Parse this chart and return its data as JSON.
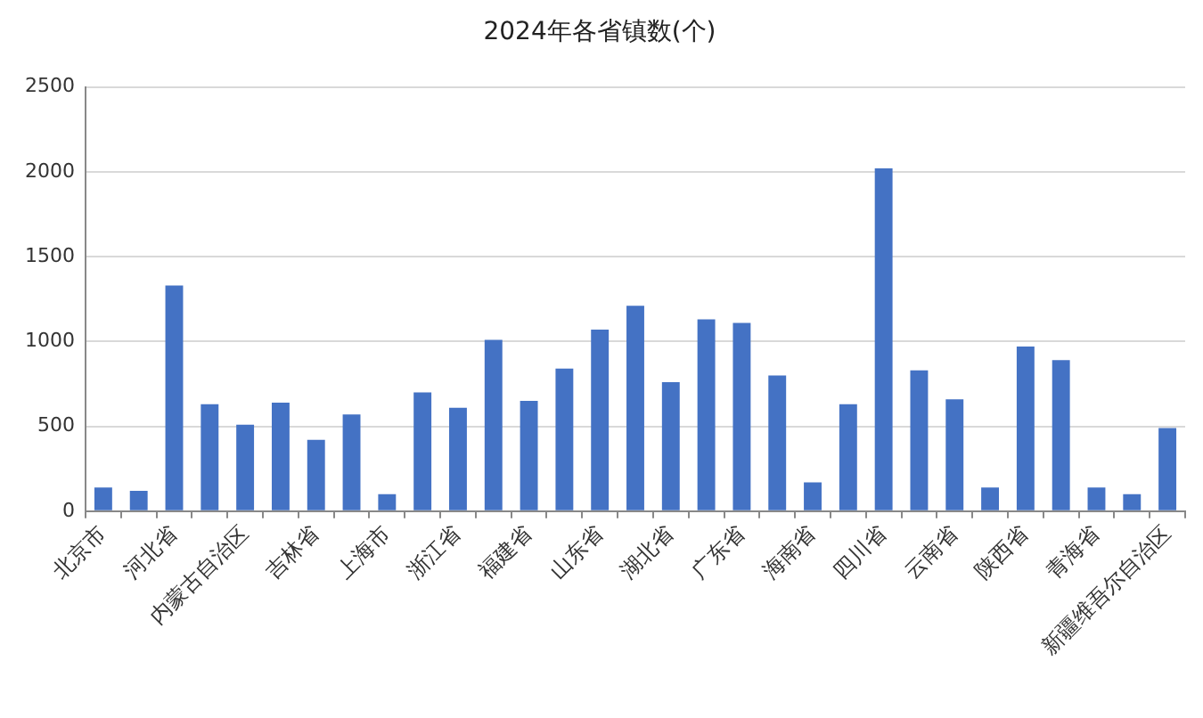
{
  "chart_data": {
    "type": "bar",
    "title": "2024年各省镇数(个)",
    "categories": [
      "北京市",
      null,
      "河北省",
      null,
      "内蒙古自治区",
      null,
      "吉林省",
      null,
      "上海市",
      null,
      "浙江省",
      null,
      "福建省",
      null,
      "山东省",
      null,
      "湖北省",
      null,
      "广东省",
      null,
      "海南省",
      null,
      "四川省",
      null,
      "云南省",
      null,
      "陕西省",
      null,
      "青海省",
      null,
      "新疆维吾尔自治区"
    ],
    "values": [
      140,
      120,
      1330,
      630,
      510,
      640,
      420,
      570,
      100,
      700,
      610,
      1010,
      650,
      840,
      1070,
      1210,
      760,
      1130,
      1110,
      800,
      170,
      630,
      2020,
      830,
      660,
      140,
      970,
      890,
      140,
      100,
      490
    ],
    "color": "#4472c4",
    "ylim": [
      0,
      2500
    ],
    "yticks": [
      0,
      500,
      1000,
      1500,
      2000,
      2500
    ],
    "grid": "y"
  }
}
